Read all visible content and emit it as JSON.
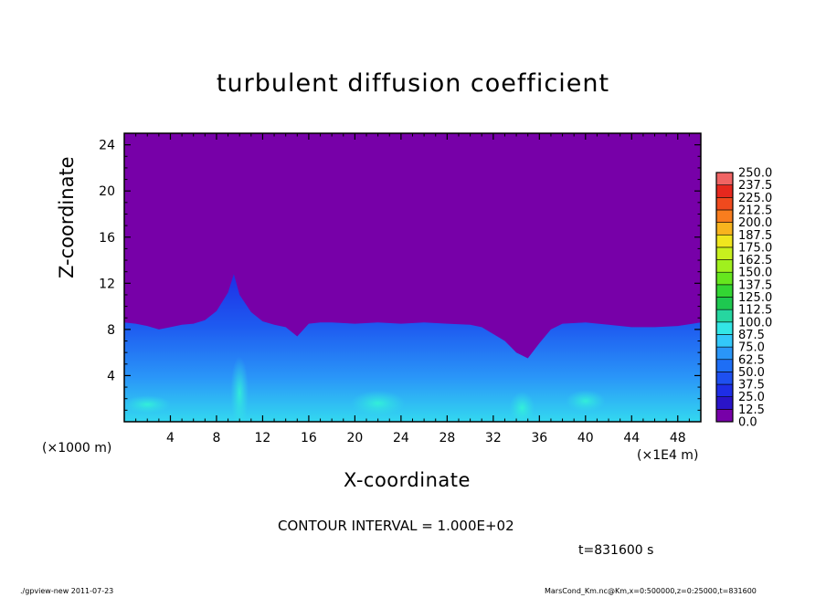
{
  "chart_data": {
    "type": "heatmap",
    "title": "turbulent diffusion coefficient",
    "xlabel": "X-coordinate",
    "ylabel": "Z-coordinate",
    "x_unit_left": "(×1000 m)",
    "x_unit_right": "(×1E4 m)",
    "xlim": [
      0,
      50
    ],
    "ylim": [
      0,
      25
    ],
    "x_ticks": [
      4,
      8,
      12,
      16,
      20,
      24,
      28,
      32,
      36,
      40,
      44,
      48
    ],
    "x_tick_labels": [
      "4",
      "8",
      "12",
      "16",
      "20",
      "24",
      "28",
      "32",
      "36",
      "40",
      "44",
      "48"
    ],
    "y_ticks": [
      4,
      8,
      12,
      16,
      20,
      24
    ],
    "y_tick_labels": [
      "4",
      "8",
      "12",
      "16",
      "20",
      "24"
    ],
    "background_color": "#7700a8",
    "boundary_layer_profile": {
      "x": [
        0,
        1,
        2,
        3,
        4,
        5,
        6,
        7,
        8,
        9,
        9.5,
        10,
        11,
        12,
        13,
        14,
        15,
        16,
        17,
        18,
        20,
        22,
        24,
        26,
        28,
        30,
        31,
        32,
        33,
        34,
        35,
        36,
        37,
        38,
        40,
        42,
        44,
        46,
        48,
        50
      ],
      "z": [
        8.6,
        8.5,
        8.3,
        8.0,
        8.2,
        8.4,
        8.5,
        8.8,
        9.6,
        11.2,
        12.8,
        11.0,
        9.5,
        8.7,
        8.4,
        8.2,
        7.4,
        8.5,
        8.6,
        8.6,
        8.5,
        8.6,
        8.5,
        8.6,
        8.5,
        8.4,
        8.2,
        7.6,
        7.0,
        6.0,
        5.5,
        6.8,
        8.0,
        8.5,
        8.6,
        8.4,
        8.2,
        8.2,
        8.3,
        8.6
      ]
    },
    "contour_interval": "CONTOUR INTERVAL = 1.000E+02",
    "colorbar": {
      "levels": [
        "0.0",
        "12.5",
        "25.0",
        "37.5",
        "50.0",
        "62.5",
        "75.0",
        "87.5",
        "100.0",
        "112.5",
        "125.0",
        "137.5",
        "150.0",
        "162.5",
        "175.0",
        "187.5",
        "200.0",
        "212.5",
        "225.0",
        "237.5",
        "250.0"
      ],
      "colors": [
        "#7700a8",
        "#2a14c8",
        "#1e2ee6",
        "#1e50f0",
        "#1e6ef5",
        "#2a96f8",
        "#33c8fa",
        "#33e6e6",
        "#26d6a0",
        "#1ec850",
        "#33d633",
        "#66e61e",
        "#a0f01e",
        "#c8f01e",
        "#f0e61e",
        "#f8b41e",
        "#f87d1e",
        "#f04a1e",
        "#e6281e",
        "#f06464"
      ]
    }
  },
  "annotations": {
    "time": "t=831600 s",
    "footer_left": "./gpview-new  2011-07-23",
    "footer_right": "MarsCond_Km.nc@Km,x=0:500000,z=0:25000,t=831600"
  }
}
